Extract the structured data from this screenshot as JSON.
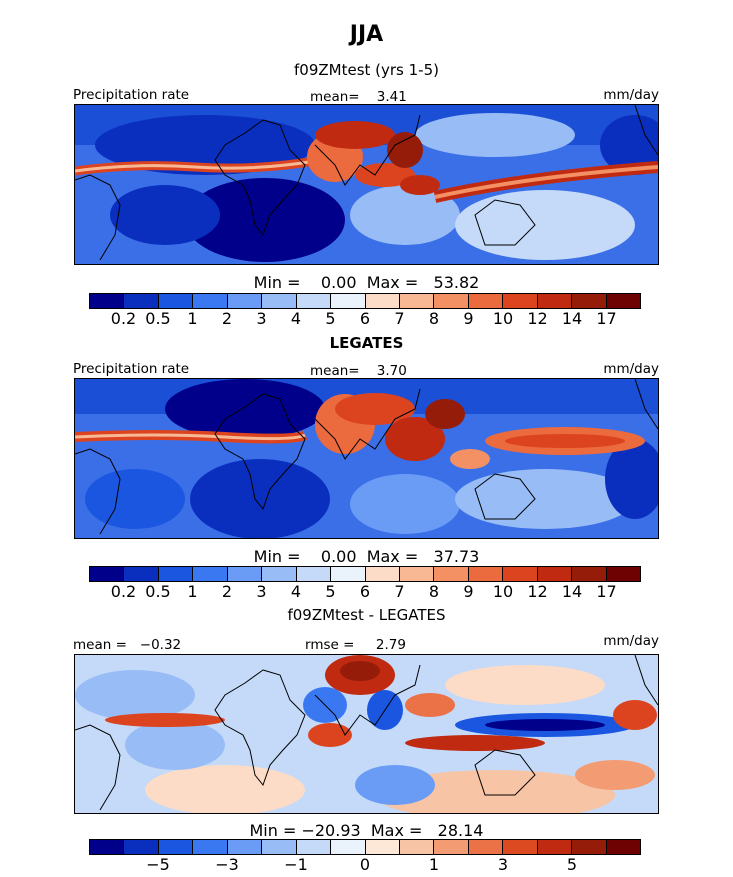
{
  "header": {
    "title": "JJA"
  },
  "panels": [
    {
      "id": "model",
      "subtitle": "f09ZMtest (yrs 1-5)",
      "left_label": "Precipitation rate",
      "center_label": "mean=    3.41",
      "right_label": "mm/day",
      "stats": "Min =    0.00  Max =   53.82",
      "min": 0.0,
      "max": 53.82,
      "mean": 3.41
    },
    {
      "id": "obs",
      "subtitle": "LEGATES",
      "left_label": "Precipitation rate",
      "center_label": "mean=    3.70",
      "right_label": "mm/day",
      "stats": "Min =    0.00  Max =   37.73",
      "min": 0.0,
      "max": 37.73,
      "mean": 3.7
    },
    {
      "id": "diff",
      "subtitle": "f09ZMtest - LEGATES",
      "left_label": "mean =   −0.32",
      "center_label": "rmse =     2.79",
      "right_label": "mm/day",
      "stats": "Min = −20.93  Max =   28.14",
      "min": -20.93,
      "max": 28.14,
      "mean": -0.32,
      "rmse": 2.79
    }
  ],
  "chart_data": [
    {
      "type": "heatmap",
      "title": "f09ZMtest (yrs 1-5)",
      "units": "mm/day",
      "contour_levels": [
        0.2,
        0.5,
        1,
        2,
        3,
        4,
        5,
        6,
        7,
        8,
        9,
        10,
        12,
        14,
        17
      ],
      "colorbar_tick_labels": [
        "0.2",
        "0.5",
        "1",
        "2",
        "3",
        "4",
        "5",
        "6",
        "7",
        "8",
        "9",
        "10",
        "12",
        "14",
        "17"
      ],
      "colors": [
        "#00008b",
        "#0a2fbf",
        "#1a56e0",
        "#3a78f2",
        "#6a9cf5",
        "#98bcf6",
        "#c4daf8",
        "#eaf2fc",
        "#fcdcc6",
        "#f8b894",
        "#f39064",
        "#eb6a3e",
        "#dc4420",
        "#c02a10",
        "#941c08",
        "#6e0202"
      ],
      "summary": {
        "mean": 3.41,
        "min": 0.0,
        "max": 53.82
      }
    },
    {
      "type": "heatmap",
      "title": "LEGATES",
      "units": "mm/day",
      "contour_levels": [
        0.2,
        0.5,
        1,
        2,
        3,
        4,
        5,
        6,
        7,
        8,
        9,
        10,
        12,
        14,
        17
      ],
      "colorbar_tick_labels": [
        "0.2",
        "0.5",
        "1",
        "2",
        "3",
        "4",
        "5",
        "6",
        "7",
        "8",
        "9",
        "10",
        "12",
        "14",
        "17"
      ],
      "colors": [
        "#00008b",
        "#0a2fbf",
        "#1a56e0",
        "#3a78f2",
        "#6a9cf5",
        "#98bcf6",
        "#c4daf8",
        "#eaf2fc",
        "#fcdcc6",
        "#f8b894",
        "#f39064",
        "#eb6a3e",
        "#dc4420",
        "#c02a10",
        "#941c08",
        "#6e0202"
      ],
      "summary": {
        "mean": 3.7,
        "min": 0.0,
        "max": 37.73
      }
    },
    {
      "type": "heatmap",
      "title": "f09ZMtest - LEGATES",
      "units": "mm/day",
      "contour_levels": [
        -6,
        -5,
        -4,
        -3,
        -2,
        -1,
        -0.5,
        0,
        0.5,
        1,
        2,
        3,
        4,
        5,
        6
      ],
      "colorbar_tick_labels": [
        "−5",
        "−3",
        "−1",
        "0",
        "1",
        "3",
        "5"
      ],
      "colors": [
        "#00008b",
        "#0a2fbf",
        "#1a56e0",
        "#3a78f2",
        "#6a9cf5",
        "#98bcf6",
        "#c4daf8",
        "#eaf2fc",
        "#fde8d8",
        "#f8c4a6",
        "#f39c74",
        "#eb7246",
        "#dc4a22",
        "#c02a10",
        "#941c08",
        "#6e0202"
      ],
      "summary": {
        "mean": -0.32,
        "rmse": 2.79,
        "min": -20.93,
        "max": 28.14
      }
    }
  ]
}
